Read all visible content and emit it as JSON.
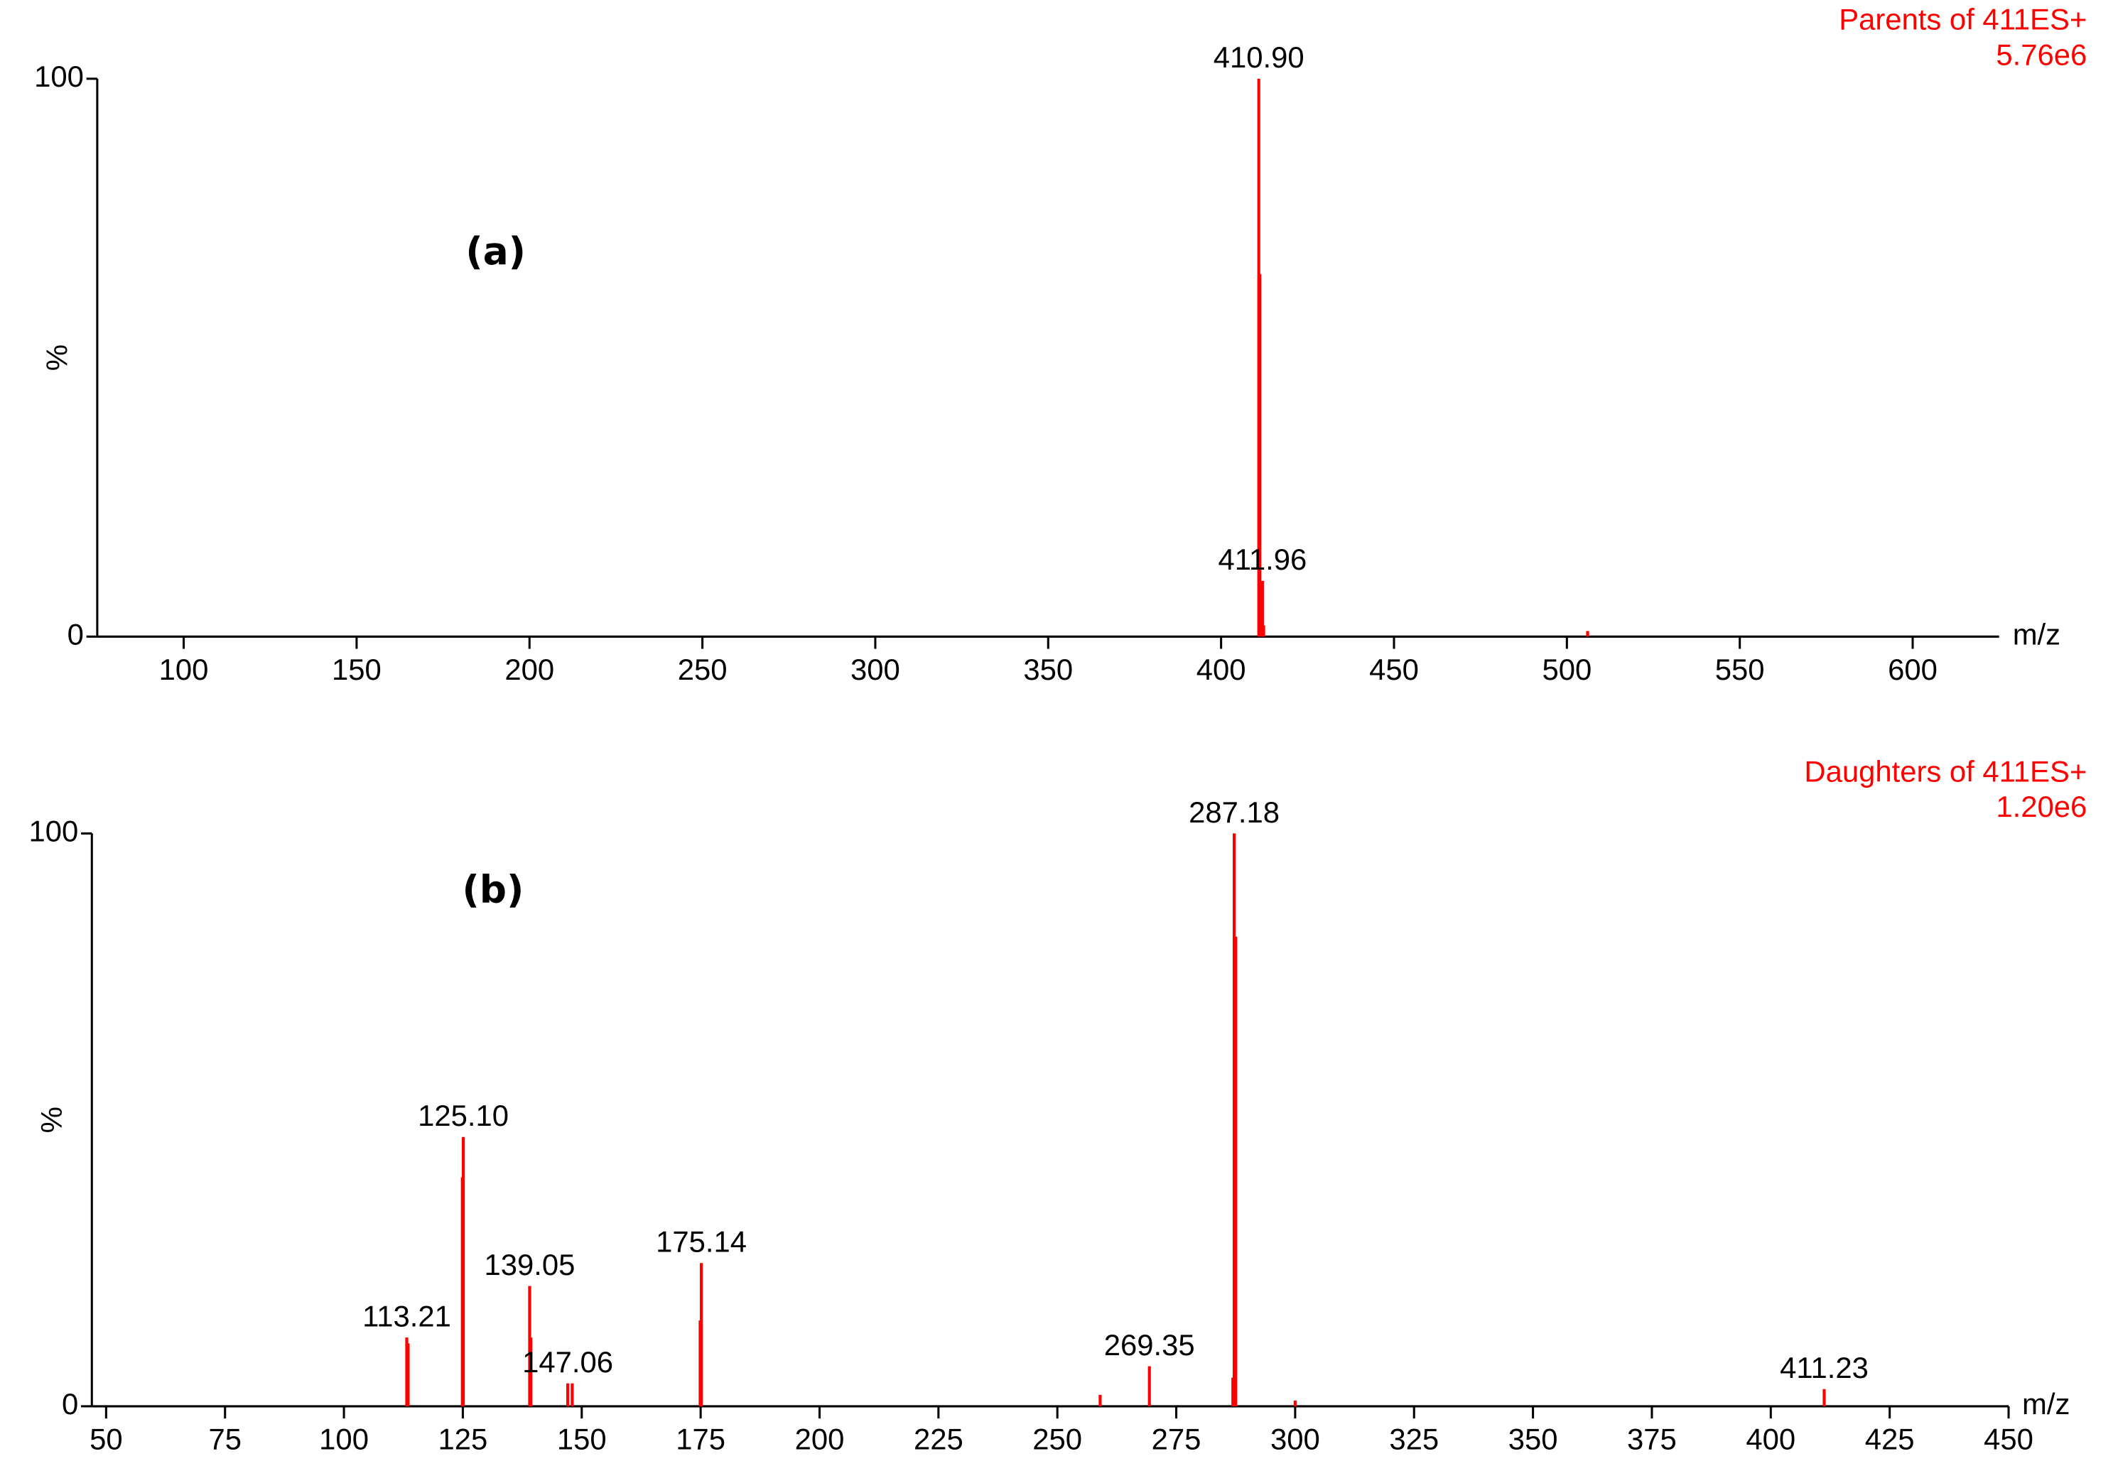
{
  "chart_data": [
    {
      "type": "stem",
      "title": "Parents of 411ES+",
      "subtitle": "5.76e6",
      "annotation": "(a)",
      "x_label": "m/z",
      "y_label": "%",
      "color": "#ff0000",
      "x": [
        410.9,
        411.2,
        411.96,
        412.3,
        506
      ],
      "values": [
        100,
        65,
        10,
        2,
        1
      ],
      "peak_labels": [
        "410.90",
        null,
        "411.96",
        null,
        null
      ],
      "xlim": [
        75,
        625
      ],
      "ylim": [
        0,
        100
      ],
      "xticks": [
        100,
        150,
        200,
        250,
        300,
        350,
        400,
        450,
        500,
        550,
        600
      ],
      "yticks": [
        0,
        100
      ]
    },
    {
      "type": "stem",
      "title": "Daughters of 411ES+",
      "subtitle": "1.20e6",
      "annotation": "(b)",
      "x_label": "m/z",
      "y_label": "%",
      "color": "#ff0000",
      "x": [
        113.21,
        113.5,
        124.9,
        125.1,
        139.05,
        139.3,
        147.06,
        148,
        174.9,
        175.14,
        259,
        269.35,
        286.9,
        287.18,
        287.5,
        300,
        411.23
      ],
      "values": [
        12,
        11,
        40,
        47,
        21,
        12,
        4,
        4,
        15,
        25,
        2,
        7,
        5,
        100,
        82,
        1,
        3
      ],
      "peak_labels": [
        "113.21",
        null,
        null,
        "125.10",
        "139.05",
        null,
        "147.06",
        null,
        null,
        "175.14",
        null,
        "269.35",
        null,
        "287.18",
        null,
        null,
        "411.23"
      ],
      "xlim": [
        47,
        450
      ],
      "ylim": [
        0,
        100
      ],
      "xticks": [
        50,
        75,
        100,
        125,
        150,
        175,
        200,
        225,
        250,
        275,
        300,
        325,
        350,
        375,
        400,
        425,
        450
      ],
      "yticks": [
        0,
        100
      ]
    }
  ]
}
